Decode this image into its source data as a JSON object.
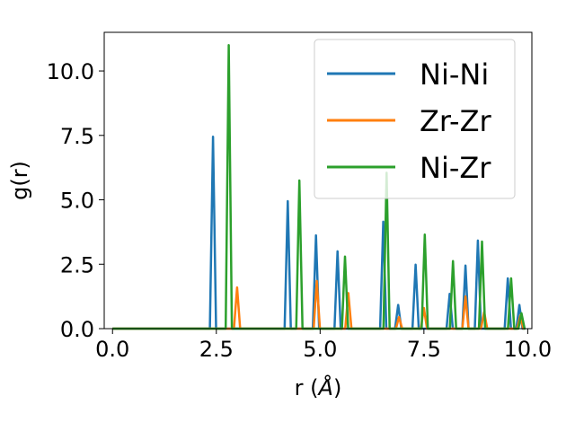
{
  "chart_data": {
    "type": "line",
    "xlabel": "r (Å)",
    "xlabel_main": "r (",
    "xlabel_unit": "Å",
    "xlabel_close": ")",
    "ylabel": "g(r)",
    "xlim": [
      -0.2,
      10.1
    ],
    "ylim": [
      0,
      11.5
    ],
    "xticks": [
      0.0,
      2.5,
      5.0,
      7.5,
      10.0
    ],
    "xtick_labels": [
      "0.0",
      "2.5",
      "5.0",
      "7.5",
      "10.0"
    ],
    "yticks": [
      0.0,
      2.5,
      5.0,
      7.5,
      10.0
    ],
    "ytick_labels": [
      "0.0",
      "2.5",
      "5.0",
      "7.5",
      "10.0"
    ],
    "grid": false,
    "legend_position": "upper right",
    "series": [
      {
        "name": "Ni-Ni",
        "color": "#1f77b4",
        "peaks": [
          [
            2.42,
            7.45
          ],
          [
            4.22,
            4.95
          ],
          [
            4.9,
            3.62
          ],
          [
            5.42,
            3.0
          ],
          [
            6.52,
            4.15
          ],
          [
            6.88,
            0.92
          ],
          [
            7.3,
            2.48
          ],
          [
            8.12,
            1.35
          ],
          [
            8.5,
            2.45
          ],
          [
            8.8,
            3.42
          ],
          [
            9.52,
            1.95
          ],
          [
            9.8,
            0.92
          ]
        ]
      },
      {
        "name": "Zr-Zr",
        "color": "#ff7f0e",
        "peaks": [
          [
            3.0,
            1.6
          ],
          [
            4.92,
            1.85
          ],
          [
            5.68,
            1.38
          ],
          [
            6.9,
            0.45
          ],
          [
            7.5,
            0.8
          ],
          [
            8.5,
            1.25
          ],
          [
            8.95,
            0.65
          ],
          [
            9.82,
            0.5
          ]
        ]
      },
      {
        "name": "Ni-Zr",
        "color": "#2ca02c",
        "peaks": [
          [
            2.8,
            11.0
          ],
          [
            4.5,
            5.75
          ],
          [
            5.6,
            2.8
          ],
          [
            6.6,
            6.05
          ],
          [
            7.52,
            3.65
          ],
          [
            8.2,
            2.62
          ],
          [
            8.9,
            3.38
          ],
          [
            9.6,
            1.95
          ],
          [
            9.85,
            0.6
          ]
        ]
      }
    ]
  }
}
